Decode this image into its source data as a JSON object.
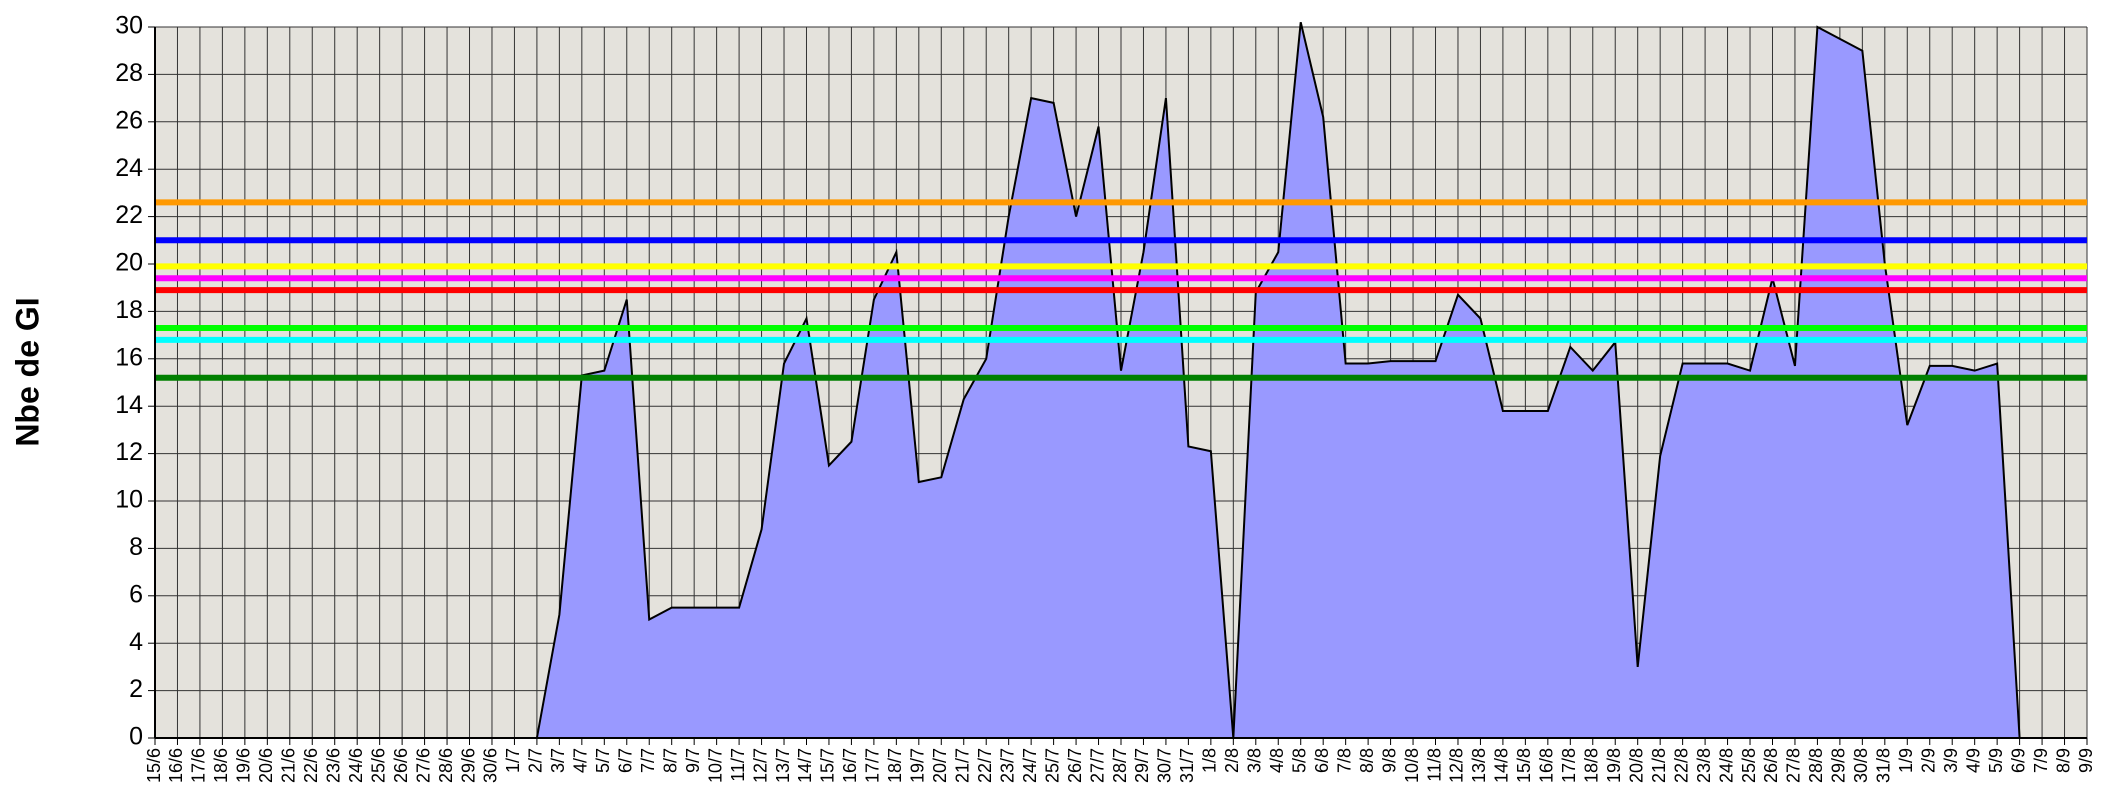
{
  "chart_data": {
    "type": "area",
    "y_label": "Nbe de GI",
    "categories": [
      "15/6",
      "16/6",
      "17/6",
      "18/6",
      "19/6",
      "20/6",
      "21/6",
      "22/6",
      "23/6",
      "24/6",
      "25/6",
      "26/6",
      "27/6",
      "28/6",
      "29/6",
      "30/6",
      "1/7",
      "2/7",
      "3/7",
      "4/7",
      "5/7",
      "6/7",
      "7/7",
      "8/7",
      "9/7",
      "10/7",
      "11/7",
      "12/7",
      "13/7",
      "14/7",
      "15/7",
      "16/7",
      "17/7",
      "18/7",
      "19/7",
      "20/7",
      "21/7",
      "22/7",
      "23/7",
      "24/7",
      "25/7",
      "26/7",
      "27/7",
      "28/7",
      "29/7",
      "30/7",
      "31/7",
      "1/8",
      "2/8",
      "3/8",
      "4/8",
      "5/8",
      "6/8",
      "7/8",
      "8/8",
      "9/8",
      "10/8",
      "11/8",
      "12/8",
      "13/8",
      "14/8",
      "15/8",
      "16/8",
      "17/8",
      "18/8",
      "19/8",
      "20/8",
      "21/8",
      "22/8",
      "23/8",
      "24/8",
      "25/8",
      "26/8",
      "27/8",
      "28/8",
      "29/8",
      "30/8",
      "31/8",
      "1/9",
      "2/9",
      "3/9",
      "4/9",
      "5/9",
      "6/9",
      "7/9",
      "8/9",
      "9/9"
    ],
    "values": [
      null,
      null,
      null,
      null,
      null,
      null,
      null,
      null,
      null,
      null,
      null,
      null,
      null,
      null,
      null,
      null,
      null,
      0,
      5.2,
      15.3,
      15.5,
      18.5,
      5,
      5.5,
      5.5,
      5.5,
      5.5,
      8.8,
      15.8,
      17.7,
      11.5,
      12.5,
      18.5,
      20.5,
      10.8,
      11,
      14.3,
      16,
      22,
      27,
      26.8,
      22,
      25.8,
      15.5,
      20.5,
      27,
      12.3,
      12.1,
      0,
      18.8,
      20.5,
      30.2,
      26.2,
      15.8,
      15.8,
      15.9,
      15.9,
      15.9,
      18.7,
      17.7,
      13.8,
      13.8,
      13.8,
      16.5,
      15.5,
      16.7,
      3,
      11.9,
      15.8,
      15.8,
      15.8,
      15.5,
      19.4,
      15.7,
      30,
      29.5,
      29,
      20,
      13.2,
      15.7,
      15.7,
      15.5,
      15.8,
      0,
      null,
      null,
      null
    ],
    "color": "#9999ff",
    "reference_lines": [
      {
        "value": 22.6,
        "color": "#ff9900"
      },
      {
        "value": 21,
        "color": "#0000ff"
      },
      {
        "value": 19.9,
        "color": "#ffff00"
      },
      {
        "value": 19.4,
        "color": "#ff00ff"
      },
      {
        "value": 18.9,
        "color": "#ff0000"
      },
      {
        "value": 17.3,
        "color": "#00ff00"
      },
      {
        "value": 16.8,
        "color": "#00ffff"
      },
      {
        "value": 15.2,
        "color": "#008000"
      }
    ],
    "ylim": [
      0,
      30
    ],
    "yticks": [
      0,
      2,
      4,
      6,
      8,
      10,
      12,
      14,
      16,
      18,
      20,
      22,
      24,
      26,
      28,
      30
    ],
    "grid": true
  }
}
